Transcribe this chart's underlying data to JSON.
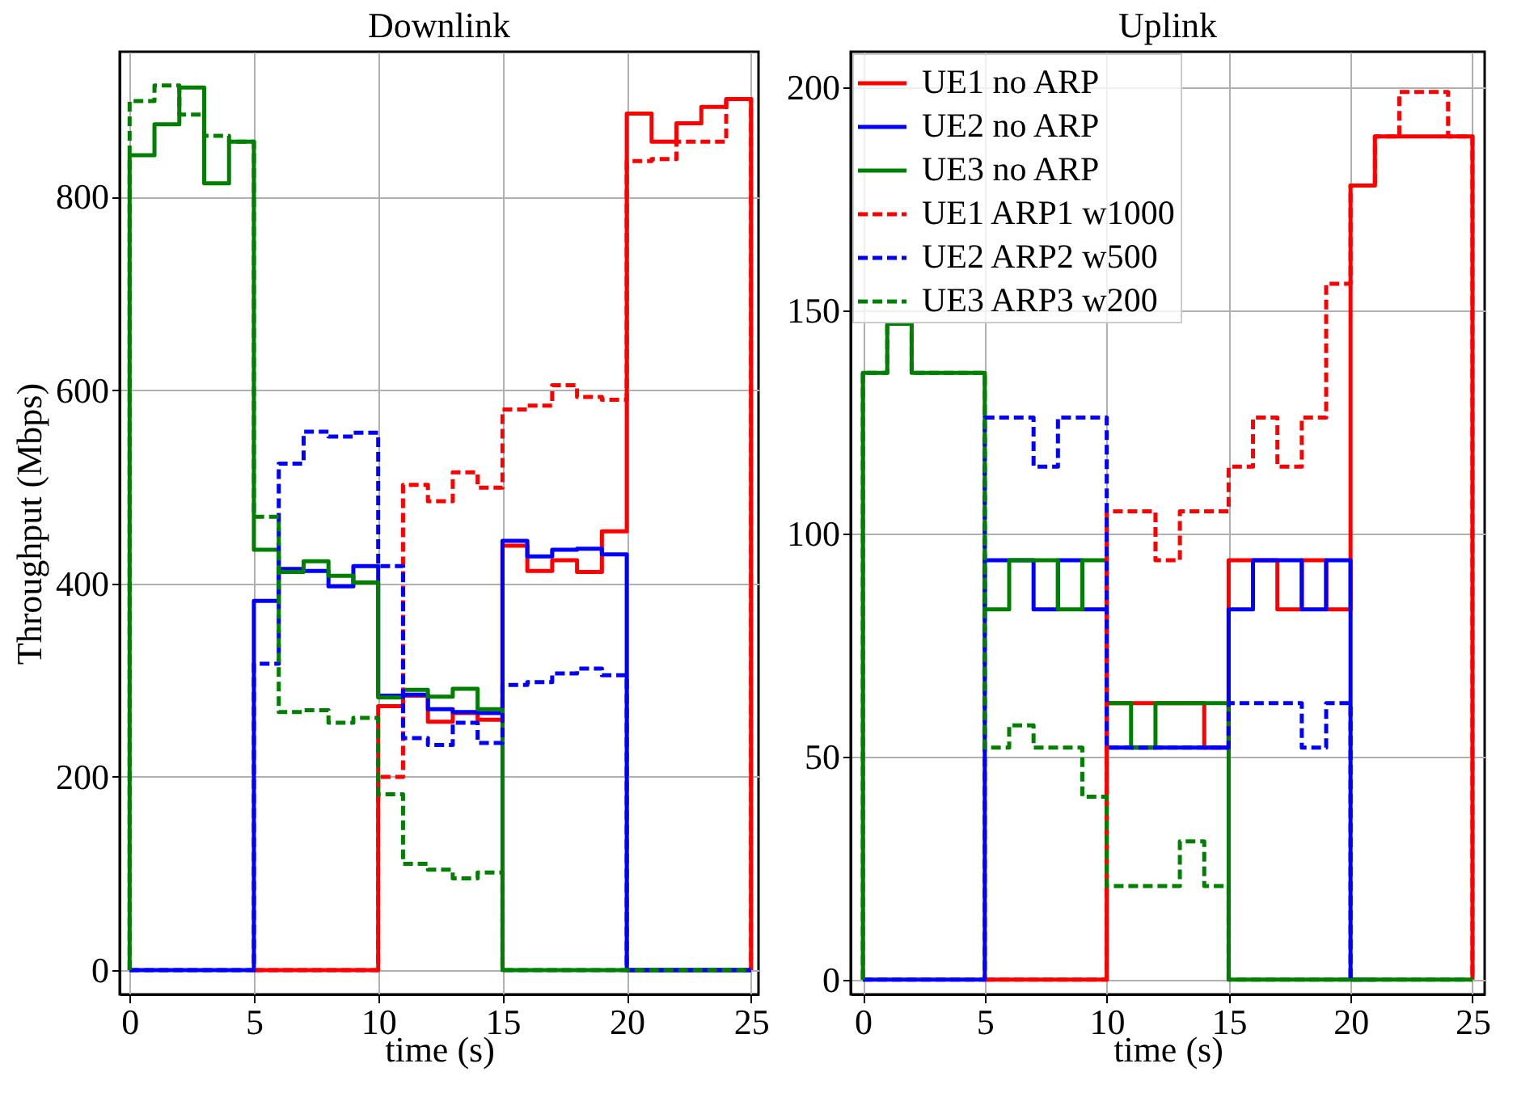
{
  "chart_data": [
    {
      "type": "step",
      "title": "Downlink",
      "xlabel": "time (s)",
      "ylabel": "Throughput (Mbps)",
      "x": [
        0,
        0,
        1,
        2,
        3,
        4,
        5,
        6,
        7,
        8,
        9,
        10,
        11,
        12,
        13,
        14,
        15,
        16,
        17,
        18,
        19,
        20,
        21,
        22,
        23,
        24,
        25
      ],
      "xlim": [
        -0.4,
        25.3
      ],
      "xticks": [
        0,
        5,
        10,
        15,
        20,
        25
      ],
      "ylim": [
        -25,
        950
      ],
      "yticks": [
        0,
        200,
        400,
        600,
        800
      ],
      "grid": true,
      "marker": "none",
      "series": [
        {
          "color": "#ff0000",
          "line_style": "solid",
          "values": [
            null,
            null,
            null,
            null,
            null,
            null,
            0,
            0,
            0,
            0,
            0,
            273,
            284,
            257,
            266,
            259,
            439,
            413,
            424,
            412,
            454,
            886,
            857,
            876,
            893,
            901,
            0
          ]
        },
        {
          "color": "#0000ff",
          "line_style": "solid",
          "values": [
            0,
            0,
            0,
            0,
            0,
            0,
            382,
            415,
            413,
            397,
            418,
            284,
            285,
            270,
            267,
            266,
            444,
            428,
            435,
            436,
            430,
            0,
            0,
            0,
            0,
            0,
            0
          ]
        },
        {
          "color": "#008000",
          "line_style": "solid",
          "values": [
            0,
            843,
            875,
            913,
            814,
            857,
            435,
            412,
            423,
            408,
            401,
            282,
            290,
            283,
            291,
            270,
            0,
            0,
            0,
            0,
            0,
            0,
            0,
            0,
            0,
            0,
            0
          ]
        },
        {
          "color": "#ff0000",
          "line_style": "dashed",
          "values": [
            null,
            null,
            null,
            null,
            null,
            null,
            0,
            0,
            0,
            0,
            0,
            200,
            502,
            485,
            515,
            499,
            580,
            584,
            605,
            593,
            590,
            837,
            839,
            857,
            857,
            901,
            0
          ]
        },
        {
          "color": "#0000ff",
          "line_style": "dashed",
          "values": [
            0,
            0,
            0,
            0,
            0,
            0,
            317,
            524,
            557,
            552,
            556,
            418,
            240,
            233,
            256,
            235,
            295,
            298,
            307,
            312,
            305,
            0,
            0,
            0,
            0,
            0,
            0
          ]
        },
        {
          "color": "#008000",
          "line_style": "dashed",
          "values": [
            0,
            899,
            915,
            885,
            863,
            857,
            469,
            267,
            269,
            256,
            261,
            182,
            110,
            104,
            95,
            101,
            0,
            0,
            0,
            0,
            0,
            0,
            0,
            0,
            0,
            0,
            0
          ]
        }
      ]
    },
    {
      "type": "step",
      "title": "Uplink",
      "xlabel": "time (s)",
      "x": [
        0,
        0,
        1,
        2,
        3,
        4,
        5,
        6,
        7,
        8,
        9,
        10,
        11,
        12,
        13,
        14,
        15,
        16,
        17,
        18,
        19,
        20,
        21,
        22,
        23,
        24,
        25
      ],
      "xlim": [
        -0.5,
        25.5
      ],
      "xticks": [
        0,
        5,
        10,
        15,
        20,
        25
      ],
      "ylim": [
        -3.3,
        208
      ],
      "yticks": [
        0,
        50,
        100,
        150,
        200
      ],
      "grid": true,
      "legend": "top left",
      "marker": "none",
      "series": [
        {
          "name": "UE1 no ARP",
          "color": "#ff0000",
          "line_style": "solid",
          "values": [
            null,
            null,
            null,
            null,
            null,
            null,
            0,
            0,
            0,
            0,
            0,
            62,
            62,
            62,
            62,
            52,
            94,
            94,
            83,
            94,
            83,
            178,
            189,
            189,
            189,
            189,
            0
          ]
        },
        {
          "name": "UE2 no ARP",
          "color": "#0000ff",
          "line_style": "solid",
          "values": [
            0,
            0,
            0,
            0,
            0,
            0,
            94,
            94,
            83,
            94,
            83,
            52,
            52,
            52,
            52,
            52,
            83,
            94,
            94,
            83,
            94,
            0,
            0,
            null,
            null,
            null,
            null
          ]
        },
        {
          "name": "UE3 no ARP",
          "color": "#008000",
          "line_style": "solid",
          "values": [
            0,
            136,
            147,
            136,
            136,
            136,
            83,
            94,
            94,
            83,
            94,
            62,
            52,
            62,
            62,
            62,
            0,
            0,
            0,
            0,
            0,
            0,
            0,
            0,
            0,
            0,
            0
          ]
        },
        {
          "name": "UE1 ARP1 w1000",
          "color": "#ff0000",
          "line_style": "dashed",
          "values": [
            null,
            null,
            null,
            null,
            null,
            null,
            0,
            0,
            0,
            0,
            0,
            105,
            105,
            94,
            105,
            105,
            115,
            126,
            115,
            126,
            156,
            178,
            189,
            199,
            199,
            189,
            0
          ]
        },
        {
          "name": "UE2 ARP2 w500",
          "color": "#0000ff",
          "line_style": "dashed",
          "values": [
            0,
            0,
            0,
            0,
            0,
            0,
            126,
            126,
            115,
            126,
            126,
            52,
            52,
            52,
            52,
            52,
            62,
            62,
            62,
            52,
            62,
            0,
            null,
            null,
            null,
            null,
            null
          ]
        },
        {
          "name": "UE3 ARP3 w200",
          "color": "#008000",
          "line_style": "dashed",
          "values": [
            0,
            136,
            147,
            136,
            136,
            136,
            52,
            57,
            52,
            52,
            41,
            21,
            21,
            21,
            31,
            21,
            0,
            0,
            0,
            0,
            0,
            0,
            0,
            0,
            0,
            0,
            0
          ]
        }
      ]
    }
  ]
}
